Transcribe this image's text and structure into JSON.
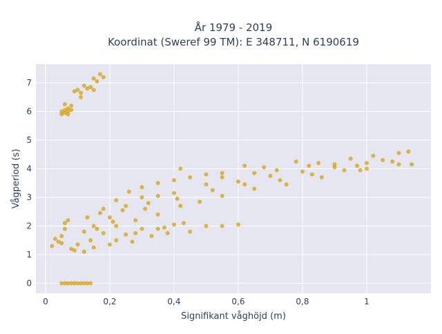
{
  "chart_data": {
    "type": "scatter",
    "title_lines": [
      "År 1979 - 2019",
      "Koordinat (Sweref 99 TM): E 348711, N 6190619"
    ],
    "xlabel": "Signifikant våghöjd (m)",
    "ylabel": "Vågperiod (s)",
    "xlim": [
      -0.03,
      1.2
    ],
    "ylim": [
      -0.35,
      7.65
    ],
    "xticks": [
      {
        "value": 0,
        "label": "0"
      },
      {
        "value": 0.2,
        "label": "0,2"
      },
      {
        "value": 0.4,
        "label": "0,4"
      },
      {
        "value": 0.6,
        "label": "0,6"
      },
      {
        "value": 0.8,
        "label": "0,8"
      },
      {
        "value": 1,
        "label": "1"
      }
    ],
    "yticks": [
      {
        "value": 0,
        "label": "0"
      },
      {
        "value": 1,
        "label": "1"
      },
      {
        "value": 2,
        "label": "2"
      },
      {
        "value": 3,
        "label": "3"
      },
      {
        "value": 4,
        "label": "4"
      },
      {
        "value": 5,
        "label": "5"
      },
      {
        "value": 6,
        "label": "6"
      },
      {
        "value": 7,
        "label": "7"
      }
    ],
    "grid": true,
    "marker_color": "#d4a20f",
    "background_color": "#e5e6ef",
    "points": [
      [
        0.05,
        0
      ],
      [
        0.06,
        0
      ],
      [
        0.07,
        0
      ],
      [
        0.08,
        0
      ],
      [
        0.09,
        0
      ],
      [
        0.1,
        0
      ],
      [
        0.11,
        0
      ],
      [
        0.12,
        0
      ],
      [
        0.13,
        0
      ],
      [
        0.14,
        0
      ],
      [
        0.05,
        5.9
      ],
      [
        0.05,
        6.0
      ],
      [
        0.06,
        6.05
      ],
      [
        0.06,
        5.95
      ],
      [
        0.07,
        6.1
      ],
      [
        0.07,
        6.0
      ],
      [
        0.06,
        6.25
      ],
      [
        0.08,
        6.2
      ],
      [
        0.07,
        5.9
      ],
      [
        0.08,
        6.05
      ],
      [
        0.09,
        6.7
      ],
      [
        0.1,
        6.75
      ],
      [
        0.11,
        6.65
      ],
      [
        0.12,
        6.9
      ],
      [
        0.13,
        6.8
      ],
      [
        0.11,
        6.5
      ],
      [
        0.14,
        6.85
      ],
      [
        0.15,
        7.15
      ],
      [
        0.16,
        7.05
      ],
      [
        0.17,
        7.3
      ],
      [
        0.18,
        7.2
      ],
      [
        0.15,
        6.75
      ],
      [
        0.12,
        1.8
      ],
      [
        0.15,
        2.0
      ],
      [
        0.2,
        2.3
      ],
      [
        0.25,
        2.7
      ],
      [
        0.3,
        3.0
      ],
      [
        0.35,
        3.05
      ],
      [
        0.4,
        3.15
      ],
      [
        0.5,
        3.45
      ],
      [
        0.6,
        3.55
      ],
      [
        0.7,
        3.75
      ],
      [
        0.8,
        3.9
      ],
      [
        0.9,
        4.05
      ],
      [
        1.0,
        4.2
      ],
      [
        1.05,
        4.3
      ],
      [
        0.42,
        4.0
      ],
      [
        0.55,
        3.85
      ],
      [
        0.62,
        4.1
      ],
      [
        0.68,
        4.05
      ],
      [
        0.78,
        4.25
      ],
      [
        0.85,
        4.2
      ],
      [
        0.95,
        4.35
      ],
      [
        1.02,
        4.45
      ],
      [
        1.08,
        4.25
      ],
      [
        1.1,
        4.55
      ],
      [
        1.13,
        4.6
      ],
      [
        1.14,
        4.15
      ],
      [
        1.1,
        4.15
      ],
      [
        0.5,
        2.0
      ],
      [
        0.55,
        2.0
      ],
      [
        0.6,
        2.05
      ],
      [
        0.4,
        2.05
      ],
      [
        0.35,
        1.9
      ],
      [
        0.3,
        1.9
      ],
      [
        0.25,
        1.7
      ],
      [
        0.28,
        1.75
      ],
      [
        0.37,
        1.95
      ],
      [
        0.43,
        2.1
      ],
      [
        0.02,
        1.3
      ],
      [
        0.03,
        1.55
      ],
      [
        0.04,
        1.45
      ],
      [
        0.05,
        1.65
      ],
      [
        0.05,
        1.4
      ],
      [
        0.06,
        1.9
      ],
      [
        0.06,
        2.1
      ],
      [
        0.07,
        2.2
      ],
      [
        0.09,
        1.15
      ],
      [
        0.12,
        1.1
      ],
      [
        0.15,
        1.25
      ],
      [
        0.2,
        1.35
      ],
      [
        0.22,
        1.5
      ],
      [
        0.27,
        1.45
      ],
      [
        0.33,
        1.65
      ],
      [
        0.38,
        1.75
      ],
      [
        0.45,
        1.8
      ],
      [
        0.18,
        2.6
      ],
      [
        0.22,
        2.9
      ],
      [
        0.26,
        3.2
      ],
      [
        0.3,
        3.35
      ],
      [
        0.35,
        3.5
      ],
      [
        0.4,
        3.6
      ],
      [
        0.45,
        3.7
      ],
      [
        0.5,
        3.8
      ],
      [
        0.55,
        3.7
      ],
      [
        0.65,
        3.85
      ],
      [
        0.72,
        3.95
      ],
      [
        0.82,
        4.1
      ],
      [
        0.9,
        4.15
      ],
      [
        0.97,
        4.1
      ],
      [
        1.0,
        4.0
      ],
      [
        0.98,
        3.95
      ],
      [
        0.86,
        3.7
      ],
      [
        0.75,
        3.45
      ],
      [
        0.65,
        3.3
      ],
      [
        0.55,
        3.05
      ],
      [
        0.48,
        2.85
      ],
      [
        0.42,
        2.7
      ],
      [
        0.35,
        2.4
      ],
      [
        0.28,
        2.2
      ],
      [
        0.22,
        2.0
      ],
      [
        0.18,
        1.75
      ],
      [
        0.14,
        1.5
      ],
      [
        0.1,
        1.35
      ],
      [
        0.08,
        1.2
      ],
      [
        0.16,
        1.9
      ],
      [
        0.21,
        2.15
      ],
      [
        0.31,
        2.6
      ],
      [
        0.41,
        2.95
      ],
      [
        0.52,
        3.25
      ],
      [
        0.62,
        3.45
      ],
      [
        0.73,
        3.6
      ],
      [
        0.83,
        3.8
      ],
      [
        0.93,
        3.95
      ],
      [
        0.13,
        2.3
      ],
      [
        0.17,
        2.45
      ],
      [
        0.24,
        2.55
      ],
      [
        0.32,
        2.8
      ]
    ]
  }
}
